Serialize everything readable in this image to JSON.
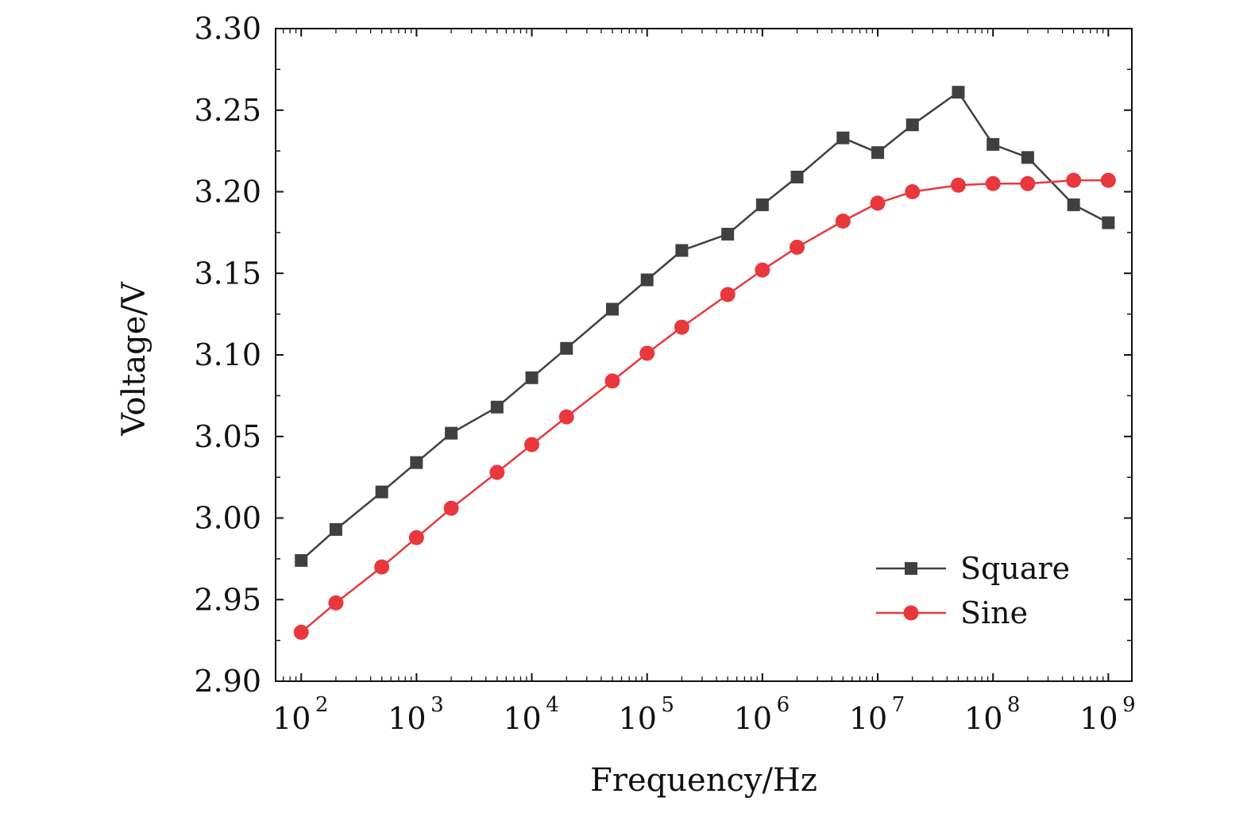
{
  "chart_data": {
    "type": "line",
    "title": "",
    "xlabel": "Frequency/Hz",
    "ylabel": "Voltage/V",
    "x_scale": "log",
    "xlim": [
      60,
      1600000000
    ],
    "ylim": [
      2.9,
      3.3
    ],
    "x_ticks": [
      {
        "value": 100,
        "base": "10",
        "exp": "2"
      },
      {
        "value": 1000,
        "base": "10",
        "exp": "3"
      },
      {
        "value": 10000,
        "base": "10",
        "exp": "4"
      },
      {
        "value": 100000,
        "base": "10",
        "exp": "5"
      },
      {
        "value": 1000000,
        "base": "10",
        "exp": "6"
      },
      {
        "value": 10000000,
        "base": "10",
        "exp": "7"
      },
      {
        "value": 100000000,
        "base": "10",
        "exp": "8"
      },
      {
        "value": 1000000000,
        "base": "10",
        "exp": "9"
      }
    ],
    "y_ticks": [
      "2.90",
      "2.95",
      "3.00",
      "3.05",
      "3.10",
      "3.15",
      "3.20",
      "3.25",
      "3.30"
    ],
    "x": [
      100,
      200,
      500,
      1000,
      2000,
      5000,
      10000,
      20000,
      50000,
      100000,
      200000,
      500000,
      1000000,
      2000000,
      5000000,
      10000000,
      20000000,
      50000000,
      100000000,
      200000000,
      500000000,
      1000000000
    ],
    "series": [
      {
        "name": "Square",
        "color": "#404040",
        "marker": "square",
        "values": [
          2.974,
          2.993,
          3.016,
          3.034,
          3.052,
          3.068,
          3.086,
          3.104,
          3.128,
          3.146,
          3.164,
          3.174,
          3.192,
          3.209,
          3.233,
          3.224,
          3.241,
          3.261,
          3.229,
          3.221,
          3.192,
          3.181
        ]
      },
      {
        "name": "Sine",
        "color": "#e8383d",
        "marker": "circle",
        "values": [
          2.93,
          2.948,
          2.97,
          2.988,
          3.006,
          3.028,
          3.045,
          3.062,
          3.084,
          3.101,
          3.117,
          3.137,
          3.152,
          3.166,
          3.182,
          3.193,
          3.2,
          3.204,
          3.205,
          3.205,
          3.207,
          3.207
        ]
      }
    ],
    "legend_position": "bottom-right",
    "grid": false
  }
}
